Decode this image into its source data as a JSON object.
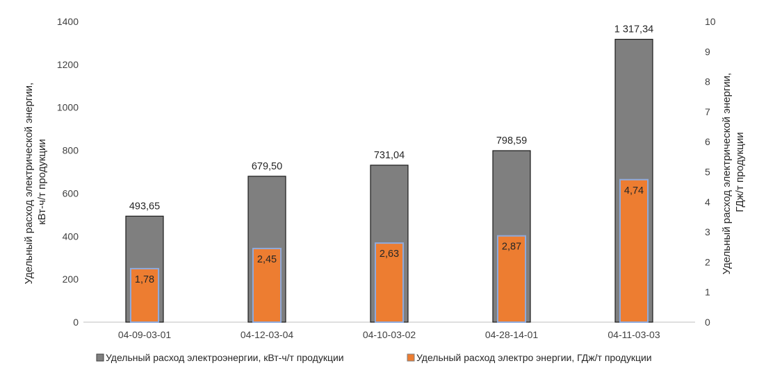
{
  "chart_data": {
    "type": "bar",
    "categories": [
      "04-09-03-01",
      "04-12-03-04",
      "04-10-03-02",
      "04-28-14-01",
      "04-11-03-03"
    ],
    "series": [
      {
        "name": "Удельный расход электроэнергии, кВт-ч/т продукции",
        "axis": "left",
        "values": [
          493.65,
          679.5,
          731.04,
          798.59,
          1317.34
        ],
        "labels": [
          "493,65",
          "679,50",
          "731,04",
          "798,59",
          "1 317,34"
        ],
        "color": "#7f7f7f"
      },
      {
        "name": "Удельный расход электро энергии, ГДж/т продукции",
        "axis": "right",
        "values": [
          1.78,
          2.45,
          2.63,
          2.87,
          4.74
        ],
        "labels": [
          "1,78",
          "2,45",
          "2,63",
          "2,87",
          "4,74"
        ],
        "color": "#ed7d31"
      }
    ],
    "ylabel": "Удельный расход электрической энергии, кВт-ч/т продукции",
    "y2label": "Удельный расход электрической энергии, ГДж/т продукции",
    "ylim": [
      0,
      1400
    ],
    "y2lim": [
      0,
      10
    ],
    "yticks": [
      "0",
      "200",
      "400",
      "600",
      "800",
      "1000",
      "1200",
      "1400"
    ],
    "y2ticks": [
      "0",
      "1",
      "2",
      "3",
      "4",
      "5",
      "6",
      "7",
      "8",
      "9",
      "10"
    ],
    "grid": false,
    "legend": "bottom"
  }
}
